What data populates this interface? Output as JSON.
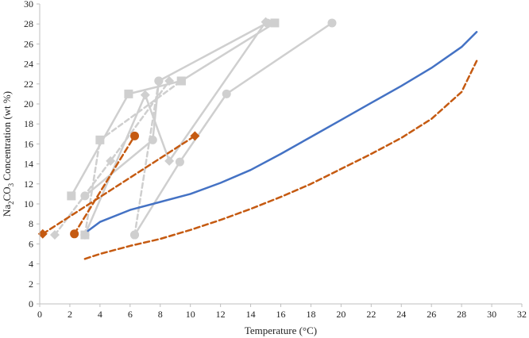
{
  "chart_data": {
    "type": "line",
    "title": "",
    "xlabel": "Temperature (°C)",
    "ylabel": "Na2CO3 Concentration (wt %)",
    "ylabel_parts": {
      "pre": "Na",
      "sub1": "2",
      "mid": "CO",
      "sub2": "3",
      "post": " Concentration (wt %)"
    },
    "xlim": [
      0,
      32
    ],
    "ylim": [
      0,
      30
    ],
    "xticks": [
      0,
      2,
      4,
      6,
      8,
      10,
      12,
      14,
      16,
      18,
      20,
      22,
      24,
      26,
      28,
      30,
      32
    ],
    "yticks": [
      0,
      2,
      4,
      6,
      8,
      10,
      12,
      14,
      16,
      18,
      20,
      22,
      24,
      26,
      28,
      30
    ],
    "grid": false,
    "legend": "none",
    "colors": {
      "gray": "#cfcfcf",
      "blue": "#4472c4",
      "orange": "#c55a11"
    },
    "series": [
      {
        "style": "gray-solid",
        "marker": "circle",
        "points": [
          [
            6.3,
            6.9
          ],
          [
            9.3,
            14.2
          ],
          [
            12.4,
            21.0
          ],
          [
            19.4,
            28.1
          ]
        ]
      },
      {
        "style": "gray-solid",
        "marker": "circle",
        "points": [
          [
            3.0,
            10.8
          ],
          [
            7.5,
            16.4
          ],
          [
            7.9,
            22.3
          ],
          [
            15.1,
            28.1
          ]
        ]
      },
      {
        "style": "gray-solid",
        "marker": "square",
        "points": [
          [
            2.1,
            10.8
          ],
          [
            5.9,
            21.0
          ],
          [
            9.4,
            22.3
          ],
          [
            15.6,
            28.1
          ]
        ]
      },
      {
        "style": "gray-solid",
        "marker": "diamond",
        "points": [
          [
            3.0,
            6.9
          ],
          [
            7.0,
            20.9
          ],
          [
            8.6,
            14.3
          ],
          [
            15.0,
            28.2
          ]
        ]
      },
      {
        "style": "gray-dashed",
        "marker": "circle",
        "points": [
          [
            6.3,
            6.9
          ],
          [
            7.9,
            22.3
          ]
        ]
      },
      {
        "style": "gray-dashed",
        "marker": "square",
        "points": [
          [
            3.0,
            6.9
          ],
          [
            4.0,
            16.4
          ],
          [
            9.4,
            22.3
          ]
        ]
      },
      {
        "style": "gray-dashed",
        "marker": "diamond",
        "points": [
          [
            1.0,
            6.9
          ],
          [
            4.7,
            14.3
          ],
          [
            8.6,
            22.3
          ]
        ]
      },
      {
        "style": "orange-dashed",
        "marker": "diamond",
        "points": [
          [
            0.2,
            7.0
          ],
          [
            10.3,
            16.8
          ]
        ]
      },
      {
        "style": "orange-dashed",
        "marker": "circle",
        "points": [
          [
            2.3,
            7.0
          ],
          [
            6.3,
            16.8
          ]
        ]
      },
      {
        "style": "blue-solid",
        "marker": "none",
        "points": [
          [
            3.2,
            7.3
          ],
          [
            4.0,
            8.2
          ],
          [
            6.0,
            9.4
          ],
          [
            8.0,
            10.2
          ],
          [
            10.0,
            11.0
          ],
          [
            12.0,
            12.1
          ],
          [
            14.0,
            13.4
          ],
          [
            16.0,
            15.0
          ],
          [
            18.0,
            16.7
          ],
          [
            20.0,
            18.4
          ],
          [
            22.0,
            20.1
          ],
          [
            24.0,
            21.8
          ],
          [
            26.0,
            23.6
          ],
          [
            28.0,
            25.7
          ],
          [
            29.0,
            27.2
          ]
        ]
      },
      {
        "style": "orange-dashed",
        "marker": "none",
        "points": [
          [
            3.0,
            4.5
          ],
          [
            4.0,
            5.0
          ],
          [
            6.0,
            5.8
          ],
          [
            8.0,
            6.5
          ],
          [
            10.0,
            7.4
          ],
          [
            12.0,
            8.4
          ],
          [
            14.0,
            9.5
          ],
          [
            16.0,
            10.7
          ],
          [
            18.0,
            12.0
          ],
          [
            20.0,
            13.5
          ],
          [
            22.0,
            15.0
          ],
          [
            24.0,
            16.6
          ],
          [
            26.0,
            18.5
          ],
          [
            28.0,
            21.2
          ],
          [
            29.0,
            24.3
          ]
        ]
      }
    ]
  }
}
